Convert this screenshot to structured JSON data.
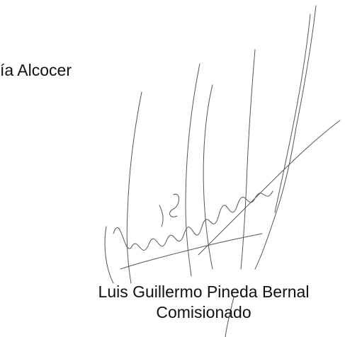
{
  "fragment": "ía Alcocer",
  "signer": {
    "name": "Luis Guillermo Pineda Bernal",
    "position": "Comisionado"
  }
}
